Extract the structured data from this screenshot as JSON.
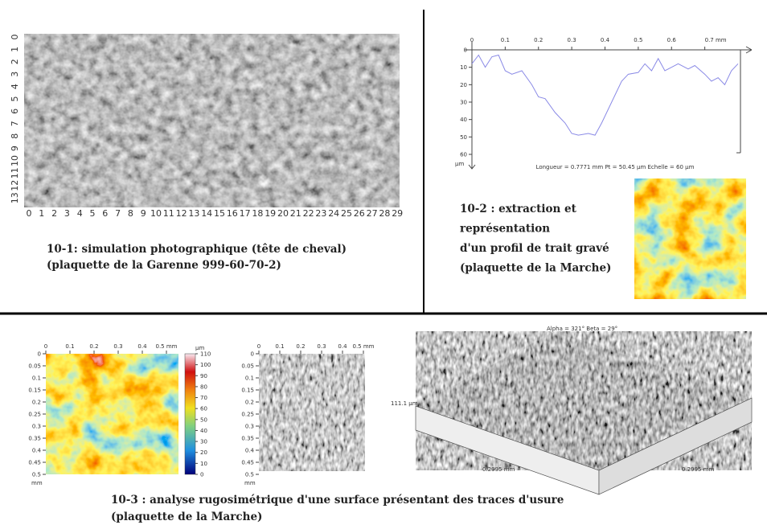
{
  "panel_1": {
    "x_ticks": [
      0,
      1,
      2,
      3,
      4,
      5,
      6,
      7,
      8,
      9,
      10,
      11,
      12,
      13,
      14,
      15,
      16,
      17,
      18,
      19,
      20,
      21,
      22,
      23,
      24,
      25,
      26,
      27,
      28,
      29
    ],
    "y_ticks": [
      0,
      1,
      2,
      3,
      4,
      5,
      6,
      7,
      8,
      9,
      10,
      11,
      12,
      13
    ],
    "caption": [
      "10-1: simulation photographique (tête de cheval)",
      "(plaquette de la Garenne 999-60-70-2)"
    ]
  },
  "panel_2": {
    "profile": {
      "type": "line",
      "color": "#8a8ae6",
      "x": [
        0,
        0.02,
        0.04,
        0.06,
        0.08,
        0.1,
        0.12,
        0.15,
        0.18,
        0.2,
        0.22,
        0.25,
        0.28,
        0.3,
        0.32,
        0.35,
        0.37,
        0.39,
        0.42,
        0.45,
        0.47,
        0.5,
        0.52,
        0.54,
        0.56,
        0.58,
        0.6,
        0.62,
        0.65,
        0.67,
        0.7,
        0.72,
        0.74,
        0.76,
        0.78,
        0.8
      ],
      "values": [
        8,
        3,
        10,
        4,
        3,
        12,
        14,
        12,
        20,
        27,
        28,
        36,
        42,
        48,
        49,
        48,
        49,
        42,
        30,
        18,
        14,
        13,
        8,
        12,
        5,
        12,
        10,
        8,
        11,
        9,
        14,
        18,
        16,
        20,
        12,
        8
      ],
      "xlim": [
        0,
        0.8
      ],
      "ylim": [
        0,
        60
      ],
      "xticks": [
        0,
        0.1,
        0.2,
        0.3,
        0.4,
        0.5,
        0.6,
        {
          "value": 0.7,
          "label": "0.7 mm"
        }
      ],
      "yticks": [
        0,
        10,
        20,
        30,
        40,
        50,
        60
      ],
      "y_unit": "µm",
      "footer": "Longueur = 0.7771 mm   Pt = 50.45 µm   Echelle = 60 µm"
    },
    "caption": [
      "10-2 : extraction et",
      "représentation",
      "d'un profil de trait gravé",
      "(plaquette de la Marche)"
    ]
  },
  "panel_3": {
    "map_xticks": [
      0,
      0.1,
      0.2,
      0.3,
      0.4,
      {
        "value": 0.5,
        "label": "0.5 mm"
      }
    ],
    "map_yticks": [
      0,
      0.05,
      0.1,
      0.15,
      0.2,
      0.25,
      0.3,
      0.35,
      0.4,
      0.45,
      0.5
    ],
    "map_y_unit": "mm",
    "colorbar": {
      "ticks": [
        0,
        10,
        20,
        30,
        40,
        50,
        60,
        70,
        80,
        90,
        100,
        110
      ],
      "unit": "µm"
    },
    "view": "Alpha = 321°      Beta = 29°",
    "height_label": "111.1 µm",
    "width_label": "0.2995 mm",
    "depth_label": "0.2995 mm",
    "caption": [
      "10-3 : analyse rugosimétrique d'une surface présentant des traces d'usure",
      "(plaquette de la Marche)"
    ]
  }
}
